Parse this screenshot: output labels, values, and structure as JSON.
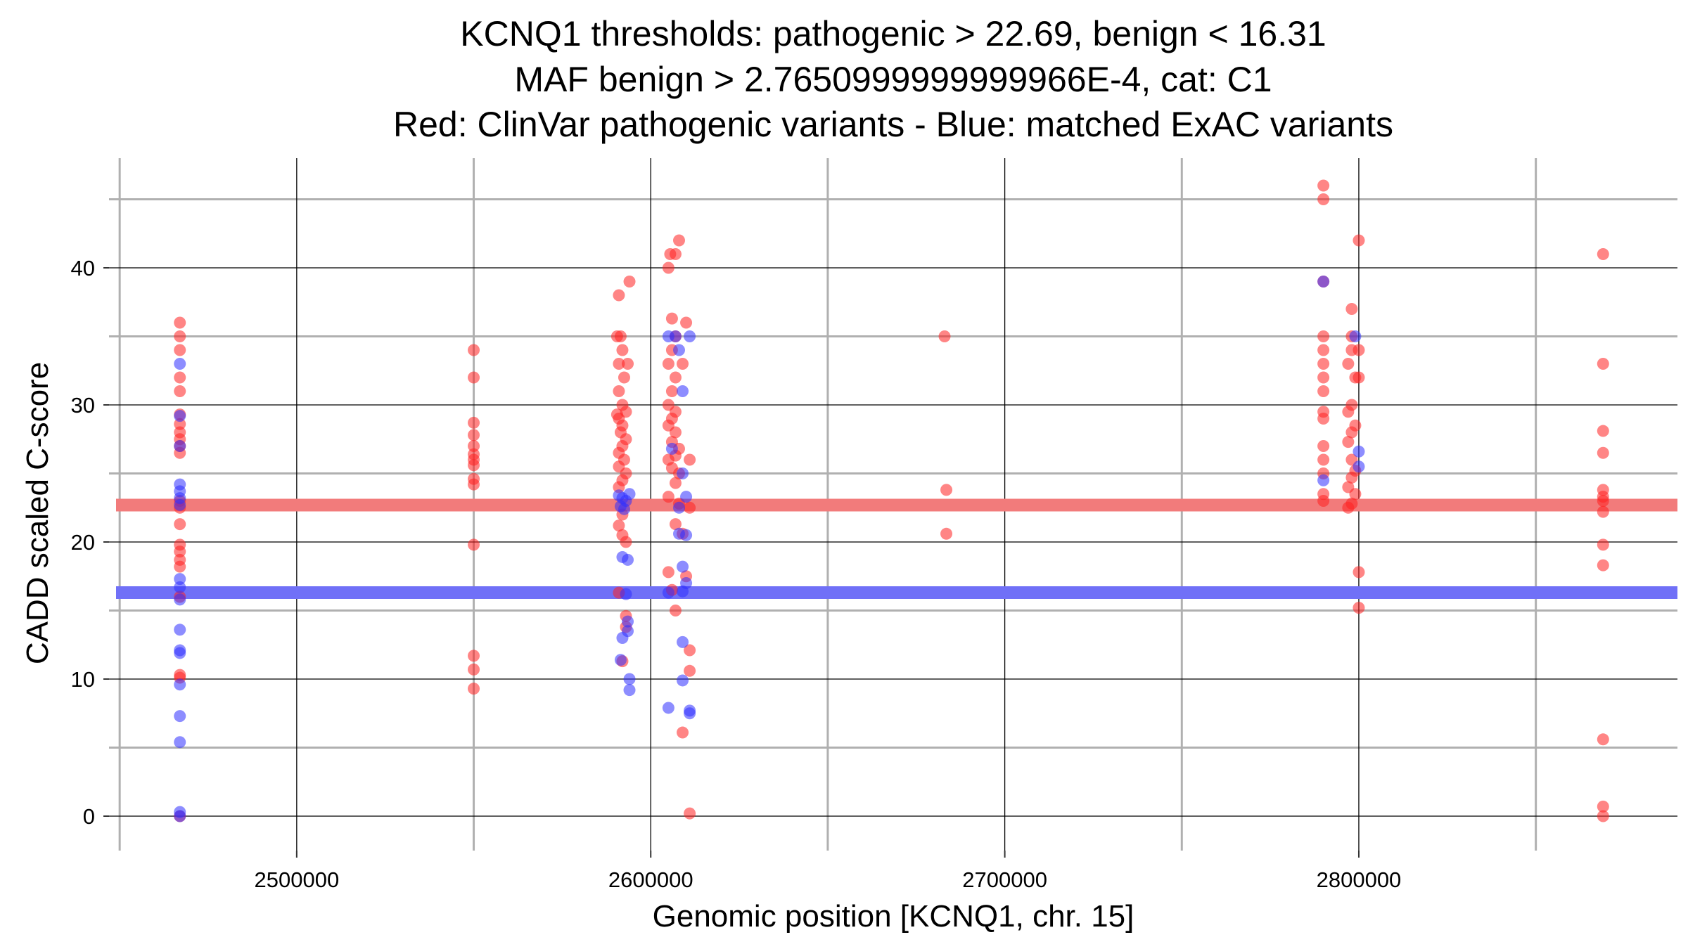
{
  "chart_data": {
    "type": "scatter",
    "title_lines": [
      "KCNQ1 thresholds: pathogenic > 22.69, benign < 16.31",
      "MAF benign > 2.7650999999999966E-4, cat: C1",
      "Red: ClinVar pathogenic variants - Blue: matched ExAC variants"
    ],
    "xlabel": "Genomic position [KCNQ1, chr. 15]",
    "ylabel": "CADD scaled C-score",
    "xlim": [
      2445000,
      2890000
    ],
    "ylim": [
      -2,
      48
    ],
    "x_major_ticks": [
      2500000,
      2600000,
      2700000,
      2800000
    ],
    "x_minor_ticks": [
      2450000,
      2550000,
      2650000,
      2750000,
      2850000
    ],
    "x_tick_labels": [
      "2500000",
      "2600000",
      "2700000",
      "2800000"
    ],
    "y_major_ticks": [
      0,
      10,
      20,
      30,
      40
    ],
    "y_minor_ticks": [
      5,
      15,
      25,
      35,
      45
    ],
    "y_tick_labels": [
      "0",
      "10",
      "20",
      "30",
      "40"
    ],
    "thresholds": [
      {
        "name": "pathogenic",
        "value": 22.69,
        "color": "#f27b7b"
      },
      {
        "name": "benign",
        "value": 16.31,
        "color": "#7070f7"
      }
    ],
    "series": [
      {
        "name": "ClinVar pathogenic variants",
        "color": "#ff2020",
        "points": [
          [
            2467000,
            36
          ],
          [
            2467000,
            35
          ],
          [
            2467000,
            34
          ],
          [
            2467000,
            32
          ],
          [
            2467000,
            31
          ],
          [
            2467000,
            29.3
          ],
          [
            2467000,
            28.6
          ],
          [
            2467000,
            28
          ],
          [
            2467000,
            27.5
          ],
          [
            2467000,
            27
          ],
          [
            2467000,
            26.5
          ],
          [
            2467000,
            23
          ],
          [
            2467000,
            22.5
          ],
          [
            2467000,
            21.3
          ],
          [
            2467000,
            19.8
          ],
          [
            2467000,
            19.3
          ],
          [
            2467000,
            18.7
          ],
          [
            2467000,
            18.2
          ],
          [
            2467000,
            16
          ],
          [
            2467000,
            10.3
          ],
          [
            2467000,
            10.1
          ],
          [
            2467000,
            0
          ],
          [
            2550000,
            34
          ],
          [
            2550000,
            32
          ],
          [
            2550000,
            28.7
          ],
          [
            2550000,
            27.8
          ],
          [
            2550000,
            27
          ],
          [
            2550000,
            26.4
          ],
          [
            2550000,
            26
          ],
          [
            2550000,
            25.6
          ],
          [
            2550000,
            24.6
          ],
          [
            2550000,
            24.2
          ],
          [
            2550000,
            19.8
          ],
          [
            2550000,
            11.7
          ],
          [
            2550000,
            10.7
          ],
          [
            2550000,
            9.3
          ],
          [
            2591000,
            38
          ],
          [
            2591500,
            35
          ],
          [
            2592000,
            34
          ],
          [
            2591000,
            33
          ],
          [
            2592500,
            32
          ],
          [
            2591000,
            31
          ],
          [
            2592000,
            30
          ],
          [
            2593000,
            29.5
          ],
          [
            2591000,
            29
          ],
          [
            2592000,
            28.5
          ],
          [
            2591500,
            28
          ],
          [
            2593000,
            27.5
          ],
          [
            2592000,
            27
          ],
          [
            2591000,
            26.5
          ],
          [
            2592500,
            26
          ],
          [
            2591000,
            25.5
          ],
          [
            2593000,
            25
          ],
          [
            2592000,
            24.5
          ],
          [
            2591000,
            24
          ],
          [
            2592000,
            22
          ],
          [
            2591000,
            21.2
          ],
          [
            2592000,
            20.5
          ],
          [
            2593000,
            20
          ],
          [
            2591000,
            16.3
          ],
          [
            2592000,
            11.3
          ],
          [
            2593000,
            14.6
          ],
          [
            2593000,
            13.8
          ],
          [
            2594000,
            39
          ],
          [
            2590500,
            35
          ],
          [
            2593500,
            33
          ],
          [
            2590500,
            29.3
          ],
          [
            2605000,
            40
          ],
          [
            2605500,
            41
          ],
          [
            2607000,
            41
          ],
          [
            2608000,
            42
          ],
          [
            2606000,
            36.3
          ],
          [
            2607000,
            35
          ],
          [
            2606000,
            34
          ],
          [
            2605000,
            33
          ],
          [
            2607000,
            32
          ],
          [
            2606000,
            31
          ],
          [
            2605000,
            30
          ],
          [
            2607000,
            29.5
          ],
          [
            2606000,
            29
          ],
          [
            2605000,
            28.5
          ],
          [
            2607000,
            28
          ],
          [
            2606000,
            27.3
          ],
          [
            2608000,
            26.8
          ],
          [
            2607000,
            26.3
          ],
          [
            2605000,
            26
          ],
          [
            2606000,
            25.4
          ],
          [
            2608000,
            25
          ],
          [
            2607000,
            24.3
          ],
          [
            2605000,
            23.3
          ],
          [
            2608000,
            22.8
          ],
          [
            2607000,
            21.3
          ],
          [
            2609000,
            20.6
          ],
          [
            2605000,
            17.8
          ],
          [
            2606000,
            16.5
          ],
          [
            2607000,
            15
          ],
          [
            2610000,
            17.5
          ],
          [
            2611000,
            12.1
          ],
          [
            2611000,
            10.6
          ],
          [
            2609000,
            6.1
          ],
          [
            2611000,
            0.2
          ],
          [
            2610000,
            36
          ],
          [
            2609000,
            33
          ],
          [
            2611000,
            26
          ],
          [
            2611000,
            22.5
          ],
          [
            2683000,
            35
          ],
          [
            2683500,
            23.8
          ],
          [
            2683500,
            20.6
          ],
          [
            2790000,
            46
          ],
          [
            2790000,
            45
          ],
          [
            2790000,
            39
          ],
          [
            2790000,
            35
          ],
          [
            2790000,
            34
          ],
          [
            2790000,
            33
          ],
          [
            2790000,
            32
          ],
          [
            2790000,
            31
          ],
          [
            2790000,
            29.5
          ],
          [
            2790000,
            29
          ],
          [
            2790000,
            27
          ],
          [
            2790000,
            26
          ],
          [
            2790000,
            25
          ],
          [
            2790000,
            23.5
          ],
          [
            2790000,
            23
          ],
          [
            2798000,
            37
          ],
          [
            2798000,
            35
          ],
          [
            2798000,
            34
          ],
          [
            2797000,
            33
          ],
          [
            2799000,
            32
          ],
          [
            2798000,
            30
          ],
          [
            2797000,
            29.5
          ],
          [
            2799000,
            28.5
          ],
          [
            2798000,
            28
          ],
          [
            2797000,
            27.3
          ],
          [
            2798000,
            26
          ],
          [
            2799000,
            25.2
          ],
          [
            2798000,
            24.7
          ],
          [
            2797000,
            24
          ],
          [
            2799000,
            23.5
          ],
          [
            2798000,
            22.8
          ],
          [
            2797000,
            22.5
          ],
          [
            2800000,
            42
          ],
          [
            2800000,
            34
          ],
          [
            2800000,
            32
          ],
          [
            2800000,
            17.8
          ],
          [
            2800000,
            15.2
          ],
          [
            2869000,
            41
          ],
          [
            2869000,
            33
          ],
          [
            2869000,
            28.1
          ],
          [
            2869000,
            26.5
          ],
          [
            2869000,
            23.8
          ],
          [
            2869000,
            23.3
          ],
          [
            2869000,
            23
          ],
          [
            2869000,
            22.2
          ],
          [
            2869000,
            19.8
          ],
          [
            2869000,
            18.3
          ],
          [
            2869000,
            5.6
          ],
          [
            2869000,
            0.7
          ],
          [
            2869000,
            0
          ]
        ]
      },
      {
        "name": "matched ExAC variants",
        "color": "#3030ff",
        "points": [
          [
            2467000,
            33
          ],
          [
            2467000,
            29.2
          ],
          [
            2467000,
            27
          ],
          [
            2467000,
            24.2
          ],
          [
            2467000,
            23.7
          ],
          [
            2467000,
            23.2
          ],
          [
            2467000,
            22.7
          ],
          [
            2467000,
            17.3
          ],
          [
            2467000,
            16.7
          ],
          [
            2467000,
            15.8
          ],
          [
            2467000,
            13.6
          ],
          [
            2467000,
            12.1
          ],
          [
            2467000,
            11.9
          ],
          [
            2467000,
            9.6
          ],
          [
            2467000,
            7.3
          ],
          [
            2467000,
            5.4
          ],
          [
            2467000,
            0.3
          ],
          [
            2467000,
            0
          ],
          [
            2591000,
            23.4
          ],
          [
            2592000,
            23.2
          ],
          [
            2593000,
            23
          ],
          [
            2591500,
            22.6
          ],
          [
            2592500,
            22.4
          ],
          [
            2594000,
            23.5
          ],
          [
            2592000,
            18.9
          ],
          [
            2593500,
            18.7
          ],
          [
            2593000,
            16.2
          ],
          [
            2593500,
            14.2
          ],
          [
            2593500,
            13.5
          ],
          [
            2592000,
            13
          ],
          [
            2591500,
            11.4
          ],
          [
            2594000,
            10
          ],
          [
            2594000,
            9.2
          ],
          [
            2605000,
            35
          ],
          [
            2607000,
            35
          ],
          [
            2608000,
            34
          ],
          [
            2609000,
            31
          ],
          [
            2606000,
            26.8
          ],
          [
            2609000,
            25
          ],
          [
            2608000,
            22.5
          ],
          [
            2610000,
            23.3
          ],
          [
            2608000,
            20.6
          ],
          [
            2610000,
            20.5
          ],
          [
            2609000,
            18.2
          ],
          [
            2610000,
            17
          ],
          [
            2609000,
            16.4
          ],
          [
            2605000,
            16.3
          ],
          [
            2609000,
            12.7
          ],
          [
            2609000,
            9.9
          ],
          [
            2605000,
            7.9
          ],
          [
            2611000,
            7.7
          ],
          [
            2611000,
            7.5
          ],
          [
            2611000,
            35
          ],
          [
            2790000,
            39
          ],
          [
            2790000,
            24.5
          ],
          [
            2799000,
            35
          ],
          [
            2800000,
            26.6
          ],
          [
            2800000,
            25.5
          ]
        ]
      }
    ]
  }
}
